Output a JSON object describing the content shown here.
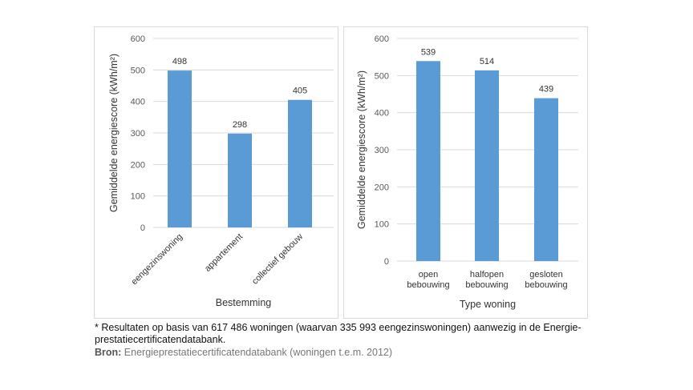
{
  "chart_data": [
    {
      "type": "bar",
      "title": "",
      "xlabel": "Bestemming",
      "ylabel": "Gemiddelde energiescore (kWh/m²)",
      "ylim": [
        0,
        600
      ],
      "yticks": [
        0,
        100,
        200,
        300,
        400,
        500,
        600
      ],
      "grid": true,
      "categories": [
        "eengezinswoning",
        "appartement",
        "collectief gebouw"
      ],
      "values": [
        498,
        298,
        405
      ],
      "color": "#5b9bd5"
    },
    {
      "type": "bar",
      "title": "",
      "xlabel": "Type woning",
      "ylabel": "Gemiddelde energiescore (kWh/m²)",
      "ylim": [
        0,
        600
      ],
      "yticks": [
        0,
        100,
        200,
        300,
        400,
        500,
        600
      ],
      "grid": true,
      "categories": [
        [
          "open",
          "bebouwing"
        ],
        [
          "halfopen",
          "bebouwing"
        ],
        [
          "gesloten",
          "bebouwing"
        ]
      ],
      "values": [
        539,
        514,
        439
      ],
      "color": "#5b9bd5"
    }
  ],
  "footnote": "* Resultaten op basis van 617 486 woningen (waarvan 335 993 eengezinswoningen) aanwezig in de Energie-prestatiecertificatendatabank.",
  "source_label": "Bron:",
  "source_text": " Energieprestatiecertificatendatabank (woningen t.e.m. 2012)"
}
